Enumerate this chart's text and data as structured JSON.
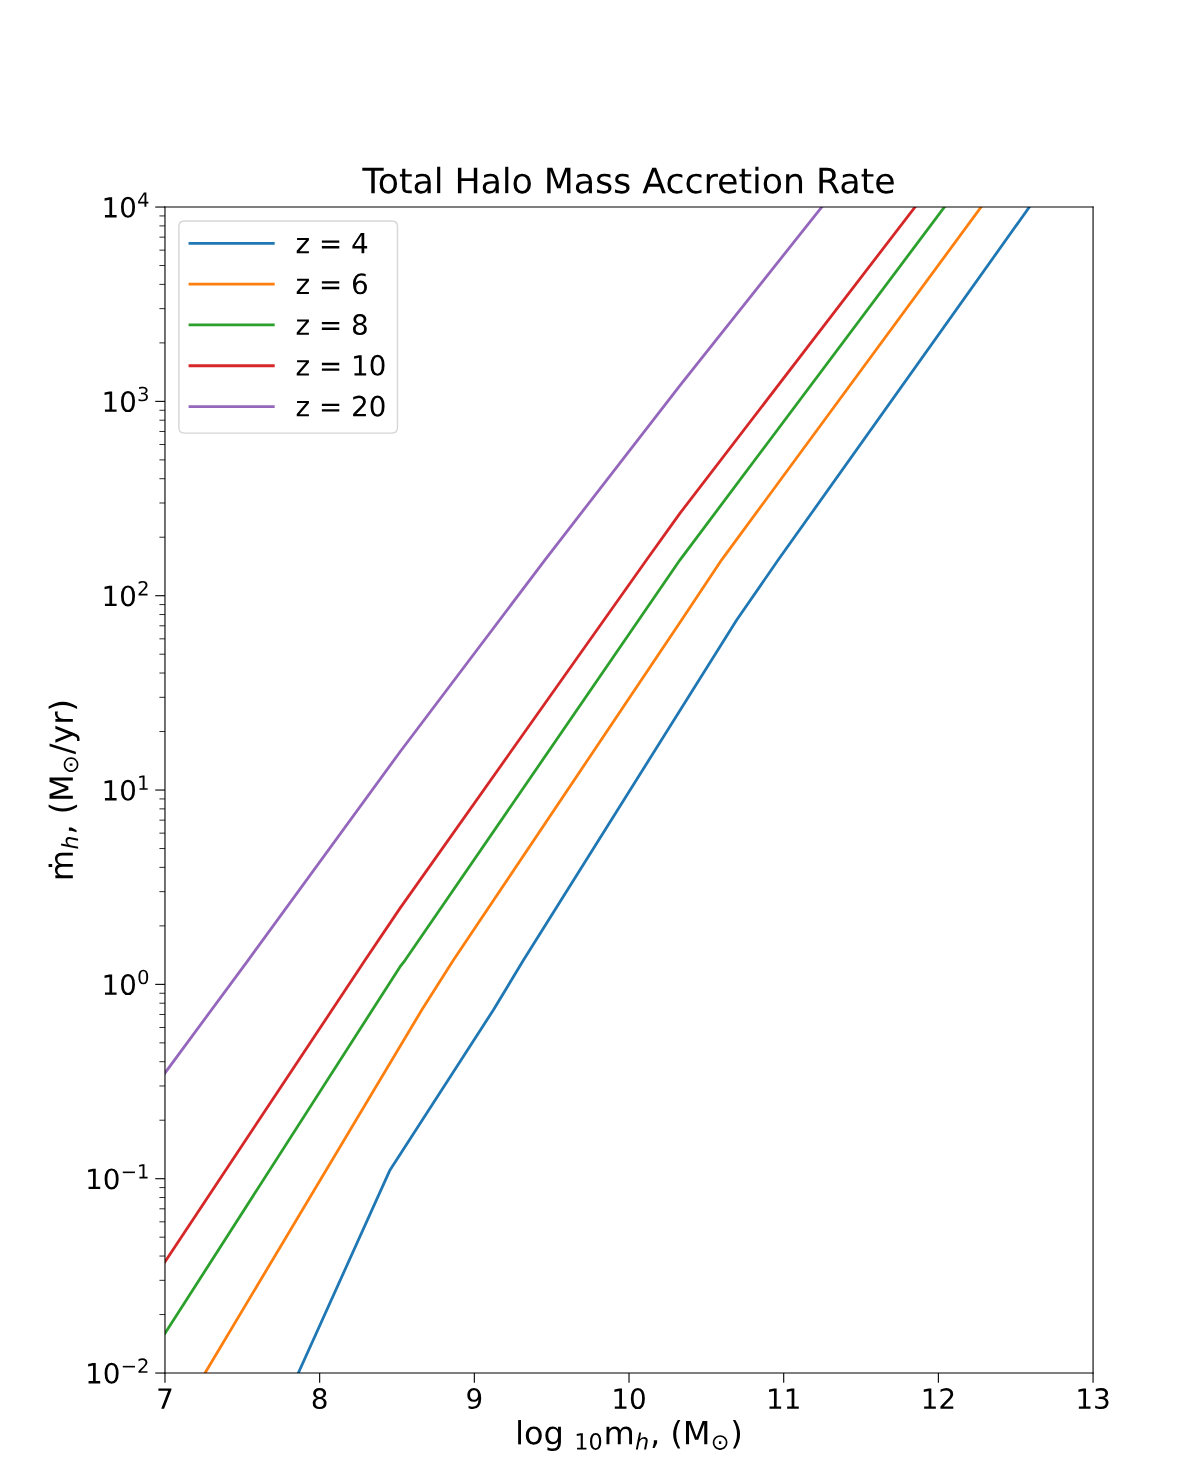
{
  "chart_data": {
    "type": "line",
    "title": "Total Halo Mass Accretion Rate",
    "xlabel": "log $_{10}$m$_{h}$, (M$_{⊙}$)",
    "ylabel": "ṁ$_{h}$, (M$_{⊙}$/yr)",
    "series": [
      {
        "name": "z = 4",
        "color": "#1f77b4",
        "x": [
          7.862,
          8.455,
          9.123,
          9.317,
          10.696,
          10.965,
          12.588
        ],
        "values": [
          0.01,
          0.111,
          0.738,
          1.33,
          75,
          153,
          10000
        ]
      },
      {
        "name": "z = 6",
        "color": "#ff7f0e",
        "x": [
          7.259,
          8.66,
          8.864,
          10.34,
          10.599,
          12.276
        ],
        "values": [
          0.01,
          0.738,
          1.33,
          75,
          153,
          10000
        ]
      },
      {
        "name": "z = 8",
        "color": "#2ca02c",
        "x": [
          7,
          8.519,
          8.552,
          10.33,
          12.039
        ],
        "values": [
          0.016,
          1.23,
          1.33,
          153,
          10000
        ]
      },
      {
        "name": "z = 10",
        "color": "#d62728",
        "x": [
          7,
          8.293,
          8.519,
          10.114,
          10.33,
          11.849
        ],
        "values": [
          0.0374,
          1.33,
          2.46,
          153,
          266,
          10000
        ]
      },
      {
        "name": "z = 20",
        "color": "#9467bd",
        "x": [
          7,
          7.537,
          8.519,
          9.457,
          10.33,
          11.246
        ],
        "values": [
          0.35,
          1.33,
          15.7,
          153,
          1210,
          10000
        ]
      }
    ],
    "log": "y",
    "xlim": [
      7,
      13
    ],
    "xticks": [
      7,
      8,
      9,
      10,
      11,
      12,
      13
    ],
    "ylim": [
      0.01,
      10000
    ],
    "yticks": [
      {
        "value": 0.01,
        "label": "10$^{−2}$"
      },
      {
        "value": 0.1,
        "label": "10$^{−1}$"
      },
      {
        "value": 1,
        "label": "10$^{0}$"
      },
      {
        "value": 10,
        "label": "10$^{1}$"
      },
      {
        "value": 100,
        "label": "10$^{2}$"
      },
      {
        "value": 1000,
        "label": "10$^{3}$"
      },
      {
        "value": 10000,
        "label": "10$^{4}$"
      }
    ],
    "grid": false,
    "legend": "top left",
    "line_style": "solid",
    "marker": "none"
  }
}
